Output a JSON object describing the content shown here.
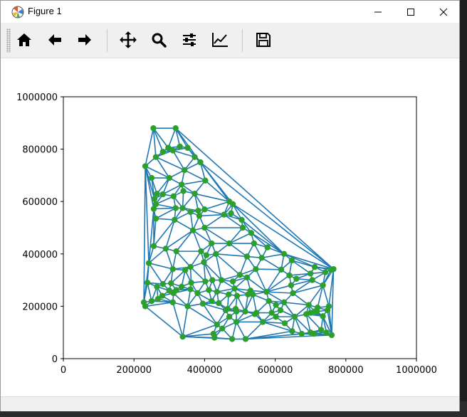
{
  "window": {
    "title": "Figure 1",
    "controls": [
      "minimize",
      "maximize",
      "close"
    ]
  },
  "toolbar": {
    "tools": [
      {
        "name": "home",
        "icon": "home-icon"
      },
      {
        "name": "back",
        "icon": "arrow-left-icon"
      },
      {
        "name": "forward",
        "icon": "arrow-right-icon"
      },
      {
        "name": "pan",
        "icon": "move-icon"
      },
      {
        "name": "zoom",
        "icon": "magnifier-icon"
      },
      {
        "name": "subplots",
        "icon": "sliders-icon"
      },
      {
        "name": "edit-axis",
        "icon": "line-chart-icon"
      },
      {
        "name": "save",
        "icon": "floppy-disk-icon"
      }
    ]
  },
  "colors": {
    "edge": "#1f77b4",
    "point": "#2ca02c"
  },
  "chart_data": {
    "type": "scatter",
    "title": "",
    "xlabel": "",
    "ylabel": "",
    "xlim": [
      0,
      1000000
    ],
    "ylim": [
      0,
      1000000
    ],
    "xticks": [
      0,
      200000,
      400000,
      600000,
      800000,
      1000000
    ],
    "yticks": [
      0,
      200000,
      400000,
      600000,
      800000,
      1000000
    ],
    "xtick_labels": [
      "0",
      "200000",
      "400000",
      "600000",
      "800000",
      "1000000"
    ],
    "ytick_labels": [
      "0",
      "200000",
      "400000",
      "600000",
      "800000",
      "1000000"
    ],
    "grid": false,
    "series": [
      {
        "marker": "circle",
        "x": [
          255000,
          318000,
          232000,
          282000,
          297000,
          310000,
          262000,
          330000,
          352000,
          372000,
          388000,
          343000,
          250000,
          300000,
          335000,
          265000,
          258000,
          282000,
          262000,
          312000,
          340000,
          372000,
          402000,
          470000,
          256000,
          318000,
          338000,
          360000,
          382000,
          400000,
          455000,
          480000,
          262000,
          315000,
          367000,
          385000,
          400000,
          475000,
          505000,
          508000,
          532000,
          540000,
          578000,
          256000,
          290000,
          320000,
          390000,
          405000,
          420000,
          470000,
          520000,
          562000,
          625000,
          647000,
          242000,
          310000,
          345000,
          360000,
          398000,
          432000,
          480000,
          500000,
          520000,
          545000,
          617000,
          640000,
          700000,
          712000,
          742000,
          765000,
          758000,
          238000,
          265000,
          282000,
          305000,
          335000,
          362000,
          402000,
          422000,
          448000,
          485000,
          523000,
          530000,
          575000,
          645000,
          660000,
          705000,
          735000,
          232000,
          250000,
          280000,
          300000,
          312000,
          320000,
          360000,
          380000,
          412000,
          435000,
          468000,
          492000,
          537000,
          582000,
          602000,
          625000,
          650000,
          695000,
          712000,
          228000,
          268000,
          310000,
          352000,
          395000,
          420000,
          440000,
          460000,
          488000,
          515000,
          547000,
          590000,
          615000,
          655000,
          700000,
          720000,
          752000,
          735000,
          465000,
          490000,
          542000,
          565000,
          602000,
          627000,
          655000,
          688000,
          718000,
          748000,
          425000,
          435000,
          450000,
          470000,
          490000,
          338000,
          428000,
          478000,
          516000,
          648000,
          675000,
          700000,
          710000,
          730000,
          745000,
          760000
        ],
        "y": [
          880000,
          880000,
          735000,
          790000,
          805000,
          795000,
          770000,
          810000,
          805000,
          770000,
          750000,
          720000,
          690000,
          690000,
          665000,
          630000,
          610000,
          628000,
          590000,
          620000,
          640000,
          630000,
          680000,
          600000,
          572000,
          575000,
          575000,
          560000,
          565000,
          570000,
          550000,
          590000,
          535000,
          530000,
          490000,
          545000,
          500000,
          555000,
          530000,
          500000,
          480000,
          440000,
          425000,
          430000,
          420000,
          410000,
          410000,
          395000,
          440000,
          440000,
          390000,
          385000,
          400000,
          375000,
          365000,
          342000,
          338000,
          350000,
          368000,
          400000,
          295000,
          320000,
          310000,
          342000,
          340000,
          318000,
          325000,
          350000,
          330000,
          342000,
          340000,
          290000,
          275000,
          285000,
          288000,
          275000,
          290000,
          295000,
          300000,
          300000,
          268000,
          245000,
          260000,
          255000,
          280000,
          305000,
          300000,
          280000,
          200000,
          220000,
          240000,
          260000,
          250000,
          262000,
          265000,
          250000,
          262000,
          255000,
          245000,
          240000,
          245000,
          220000,
          205000,
          215000,
          250000,
          205000,
          180000,
          215000,
          228000,
          215000,
          200000,
          210000,
          220000,
          212000,
          185000,
          190000,
          180000,
          175000,
          175000,
          185000,
          160000,
          175000,
          195000,
          200000,
          162000,
          190000,
          180000,
          170000,
          140000,
          160000,
          135000,
          160000,
          170000,
          180000,
          185000,
          95000,
          130000,
          115000,
          160000,
          140000,
          84000,
          80000,
          75000,
          75000,
          105000,
          95000,
          100000,
          95000,
          110000,
          100000,
          90000
        ]
      }
    ]
  }
}
